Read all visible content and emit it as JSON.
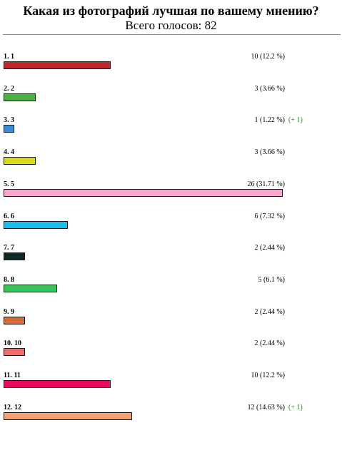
{
  "poll": {
    "title": "Какая из фотографий лучшая по вашему мнению?",
    "total": "Всего голосов: 82",
    "total_votes": 82,
    "options": [
      {
        "label": "1. 1",
        "votes": 10,
        "percent": 12.2,
        "count_text": "10 (12.2 %)",
        "delta": "",
        "color": "#c0282c"
      },
      {
        "label": "2. 2",
        "votes": 3,
        "percent": 3.66,
        "count_text": "3 (3.66 %)",
        "delta": "",
        "color": "#4fb04a"
      },
      {
        "label": "3. 3",
        "votes": 1,
        "percent": 1.22,
        "count_text": "1 (1.22 %)",
        "delta": "(+ 1)",
        "color": "#3d8ad6"
      },
      {
        "label": "4. 4",
        "votes": 3,
        "percent": 3.66,
        "count_text": "3 (3.66 %)",
        "delta": "",
        "color": "#d8d81c"
      },
      {
        "label": "5. 5",
        "votes": 26,
        "percent": 31.71,
        "count_text": "26 (31.71 %)",
        "delta": "",
        "color": "#f7a8cf"
      },
      {
        "label": "6. 6",
        "votes": 6,
        "percent": 7.32,
        "count_text": "6 (7.32 %)",
        "delta": "",
        "color": "#1bbfee"
      },
      {
        "label": "7. 7",
        "votes": 2,
        "percent": 2.44,
        "count_text": "2 (2.44 %)",
        "delta": "",
        "color": "#0e2b27"
      },
      {
        "label": "8. 8",
        "votes": 5,
        "percent": 6.1,
        "count_text": "5 (6.1 %)",
        "delta": "",
        "color": "#38c45c"
      },
      {
        "label": "9. 9",
        "votes": 2,
        "percent": 2.44,
        "count_text": "2 (2.44 %)",
        "delta": "",
        "color": "#d86a32"
      },
      {
        "label": "10. 10",
        "votes": 2,
        "percent": 2.44,
        "count_text": "2 (2.44 %)",
        "delta": "",
        "color": "#f76a6a"
      },
      {
        "label": "11. 11",
        "votes": 10,
        "percent": 12.2,
        "count_text": "10 (12.2 %)",
        "delta": "",
        "color": "#ec0a60"
      },
      {
        "label": "12. 12",
        "votes": 12,
        "percent": 14.63,
        "count_text": "12 (14.63 %)",
        "delta": "(+ 1)",
        "color": "#f7a070"
      }
    ]
  }
}
